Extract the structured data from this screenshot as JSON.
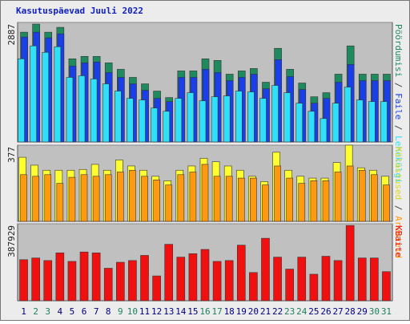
{
  "chart_data": [
    {
      "type": "bar",
      "title": "Kasutuspäevad Juuli 2022",
      "categories": [
        "1",
        "2",
        "3",
        "4",
        "5",
        "6",
        "7",
        "8",
        "9",
        "10",
        "11",
        "12",
        "13",
        "14",
        "15",
        "16",
        "17",
        "18",
        "19",
        "20",
        "21",
        "22",
        "23",
        "24",
        "25",
        "26",
        "27",
        "28",
        "29",
        "30",
        "31"
      ],
      "category_colors": [
        "#000080",
        "#208060",
        "#208060",
        "#000080",
        "#000080",
        "#000080",
        "#000080",
        "#000080",
        "#208060",
        "#208060",
        "#000080",
        "#000080",
        "#000080",
        "#000080",
        "#000080",
        "#208060",
        "#208060",
        "#000080",
        "#000080",
        "#000080",
        "#000080",
        "#000080",
        "#208060",
        "#208060",
        "#000080",
        "#000080",
        "#000080",
        "#000080",
        "#000080",
        "#208060",
        "#208060"
      ],
      "separator": " / ",
      "ylim": [
        0,
        2887
      ],
      "yticks": [
        2887
      ],
      "series": [
        {
          "name": "Pöördumisi",
          "color": "#1e8a5e",
          "values": [
            2652,
            2847,
            2652,
            2769,
            2009,
            2067,
            2067,
            1911,
            1755,
            1560,
            1404,
            1229,
            1073,
            1716,
            1716,
            2009,
            1970,
            1638,
            1716,
            1775,
            1443,
            2262,
            1755,
            1424,
            1092,
            1190,
            1638,
            2321,
            1638,
            1638,
            1638
          ]
        },
        {
          "name": "Faile",
          "color": "#1a3ee8",
          "values": [
            2535,
            2652,
            2516,
            2613,
            1833,
            1911,
            1931,
            1677,
            1560,
            1404,
            1248,
            1053,
            975,
            1560,
            1560,
            1755,
            1677,
            1482,
            1560,
            1638,
            1287,
            1989,
            1580,
            1268,
            936,
            1053,
            1443,
            1872,
            1482,
            1482,
            1482
          ]
        },
        {
          "name": "Lehekülgi",
          "color": "#30e0f8",
          "values": [
            2009,
            2321,
            2165,
            2301,
            1560,
            1599,
            1521,
            1404,
            1229,
            1053,
            1014,
            819,
            741,
            1053,
            1190,
            995,
            1092,
            1112,
            1229,
            1209,
            1053,
            1365,
            1190,
            936,
            741,
            566,
            936,
            1326,
            1014,
            975,
            975
          ]
        }
      ]
    },
    {
      "type": "bar",
      "ylim": [
        0,
        377
      ],
      "yticks": [
        377
      ],
      "separator": " / ",
      "series": [
        {
          "name": "Külastused",
          "color": "#ffff30",
          "values": [
            317,
            278,
            253,
            253,
            253,
            257,
            282,
            253,
            304,
            274,
            253,
            223,
            201,
            253,
            274,
            312,
            295,
            274,
            253,
            223,
            197,
            342,
            253,
            223,
            214,
            214,
            291,
            377,
            265,
            253,
            223
          ]
        },
        {
          "name": "Arvuteid",
          "color": "#ff9a10",
          "values": [
            231,
            223,
            231,
            188,
            218,
            231,
            223,
            231,
            244,
            253,
            223,
            205,
            180,
            231,
            244,
            282,
            223,
            223,
            214,
            214,
            180,
            274,
            214,
            188,
            201,
            201,
            244,
            274,
            253,
            231,
            180
          ]
        }
      ]
    },
    {
      "type": "bar",
      "ylim": [
        0,
        387929
      ],
      "yticks": [
        387929
      ],
      "separator": " / ",
      "series": [
        {
          "name": "KBaite",
          "color": "#f01010",
          "values": [
            206880,
            215500,
            202570,
            241360,
            198260,
            245670,
            241360,
            163780,
            193950,
            202570,
            228430,
            124990,
            284460,
            219810,
            237050,
            258600,
            198260,
            202570,
            280150,
            142230,
            314630,
            219810,
            159470,
            219810,
            133610,
            224120,
            202570,
            379280,
            215500,
            215500,
            146540
          ]
        }
      ]
    }
  ]
}
